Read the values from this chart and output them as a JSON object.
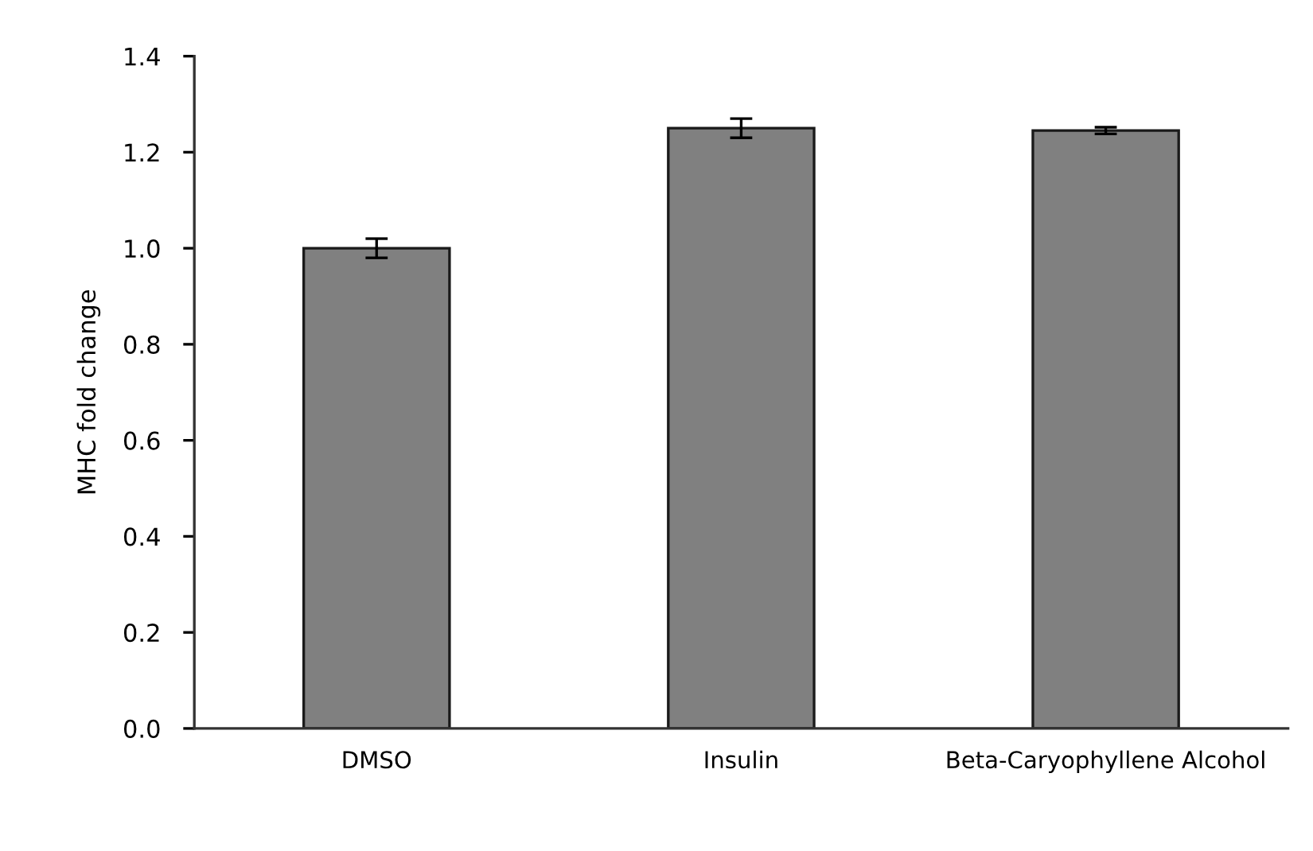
{
  "chart_data": {
    "type": "bar",
    "ylabel": "MHC fold change",
    "categories": [
      "DMSO",
      "Insulin",
      "Beta-Caryophyllene Alcohol"
    ],
    "values": [
      1.0,
      1.25,
      1.245
    ],
    "errors": [
      0.02,
      0.02,
      0.007
    ],
    "color": "#808080",
    "ylim": [
      0,
      1.4
    ],
    "yticks": [
      {
        "value": 0,
        "label": "0.0"
      },
      0.2,
      0.4,
      0.6,
      0.8,
      {
        "value": 1,
        "label": "1.0"
      },
      1.2,
      1.4
    ],
    "grid": false
  }
}
